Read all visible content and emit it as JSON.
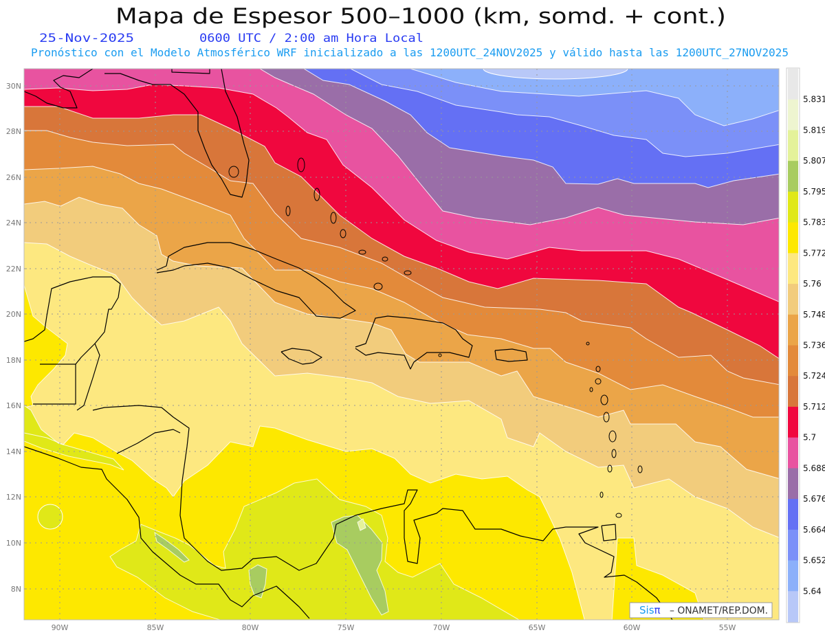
{
  "header": {
    "title": "Mapa de Espesor 500–1000 (km, somd. + cont.)",
    "date": "25-Nov-2025",
    "time": "0600 UTC / 2:00 am Hora Local",
    "subtitle": "Pronóstico con el Modelo Atmosférico WRF inicializado a las 1200UTC_24NOV2025 y válido hasta las  1200UTC_27NOV2025"
  },
  "map": {
    "lat_ticks": [
      "30N",
      "28N",
      "26N",
      "24N",
      "22N",
      "20N",
      "18N",
      "16N",
      "14N",
      "12N",
      "10N",
      "8N"
    ],
    "lon_ticks": [
      "90W",
      "85W",
      "80W",
      "75W",
      "70W",
      "65W",
      "60W",
      "55W"
    ],
    "coastline_color": "#000000",
    "contour_color": "#ffffff"
  },
  "colorbar": {
    "colors": [
      "#e8e8e8",
      "#eef5d0",
      "#e4f29a",
      "#a8cc60",
      "#e0e818",
      "#fde800",
      "#fde880",
      "#f2cc7c",
      "#eba548",
      "#e38a3a",
      "#d8763a",
      "#f0073e",
      "#e853a0",
      "#9a6ea8",
      "#6470f4",
      "#7b90f8",
      "#8cb0fa",
      "#b8c8f8"
    ],
    "labels": [
      "5.831",
      "5.819",
      "5.807",
      "5.795",
      "5.783",
      "5.772",
      "5.76",
      "5.748",
      "5.736",
      "5.724",
      "5.712",
      "5.7",
      "5.688",
      "5.676",
      "5.664",
      "5.652",
      "5.64"
    ]
  },
  "credit": {
    "logo": "Sisπ",
    "text": "–  ONAMET/REP.DOM."
  }
}
